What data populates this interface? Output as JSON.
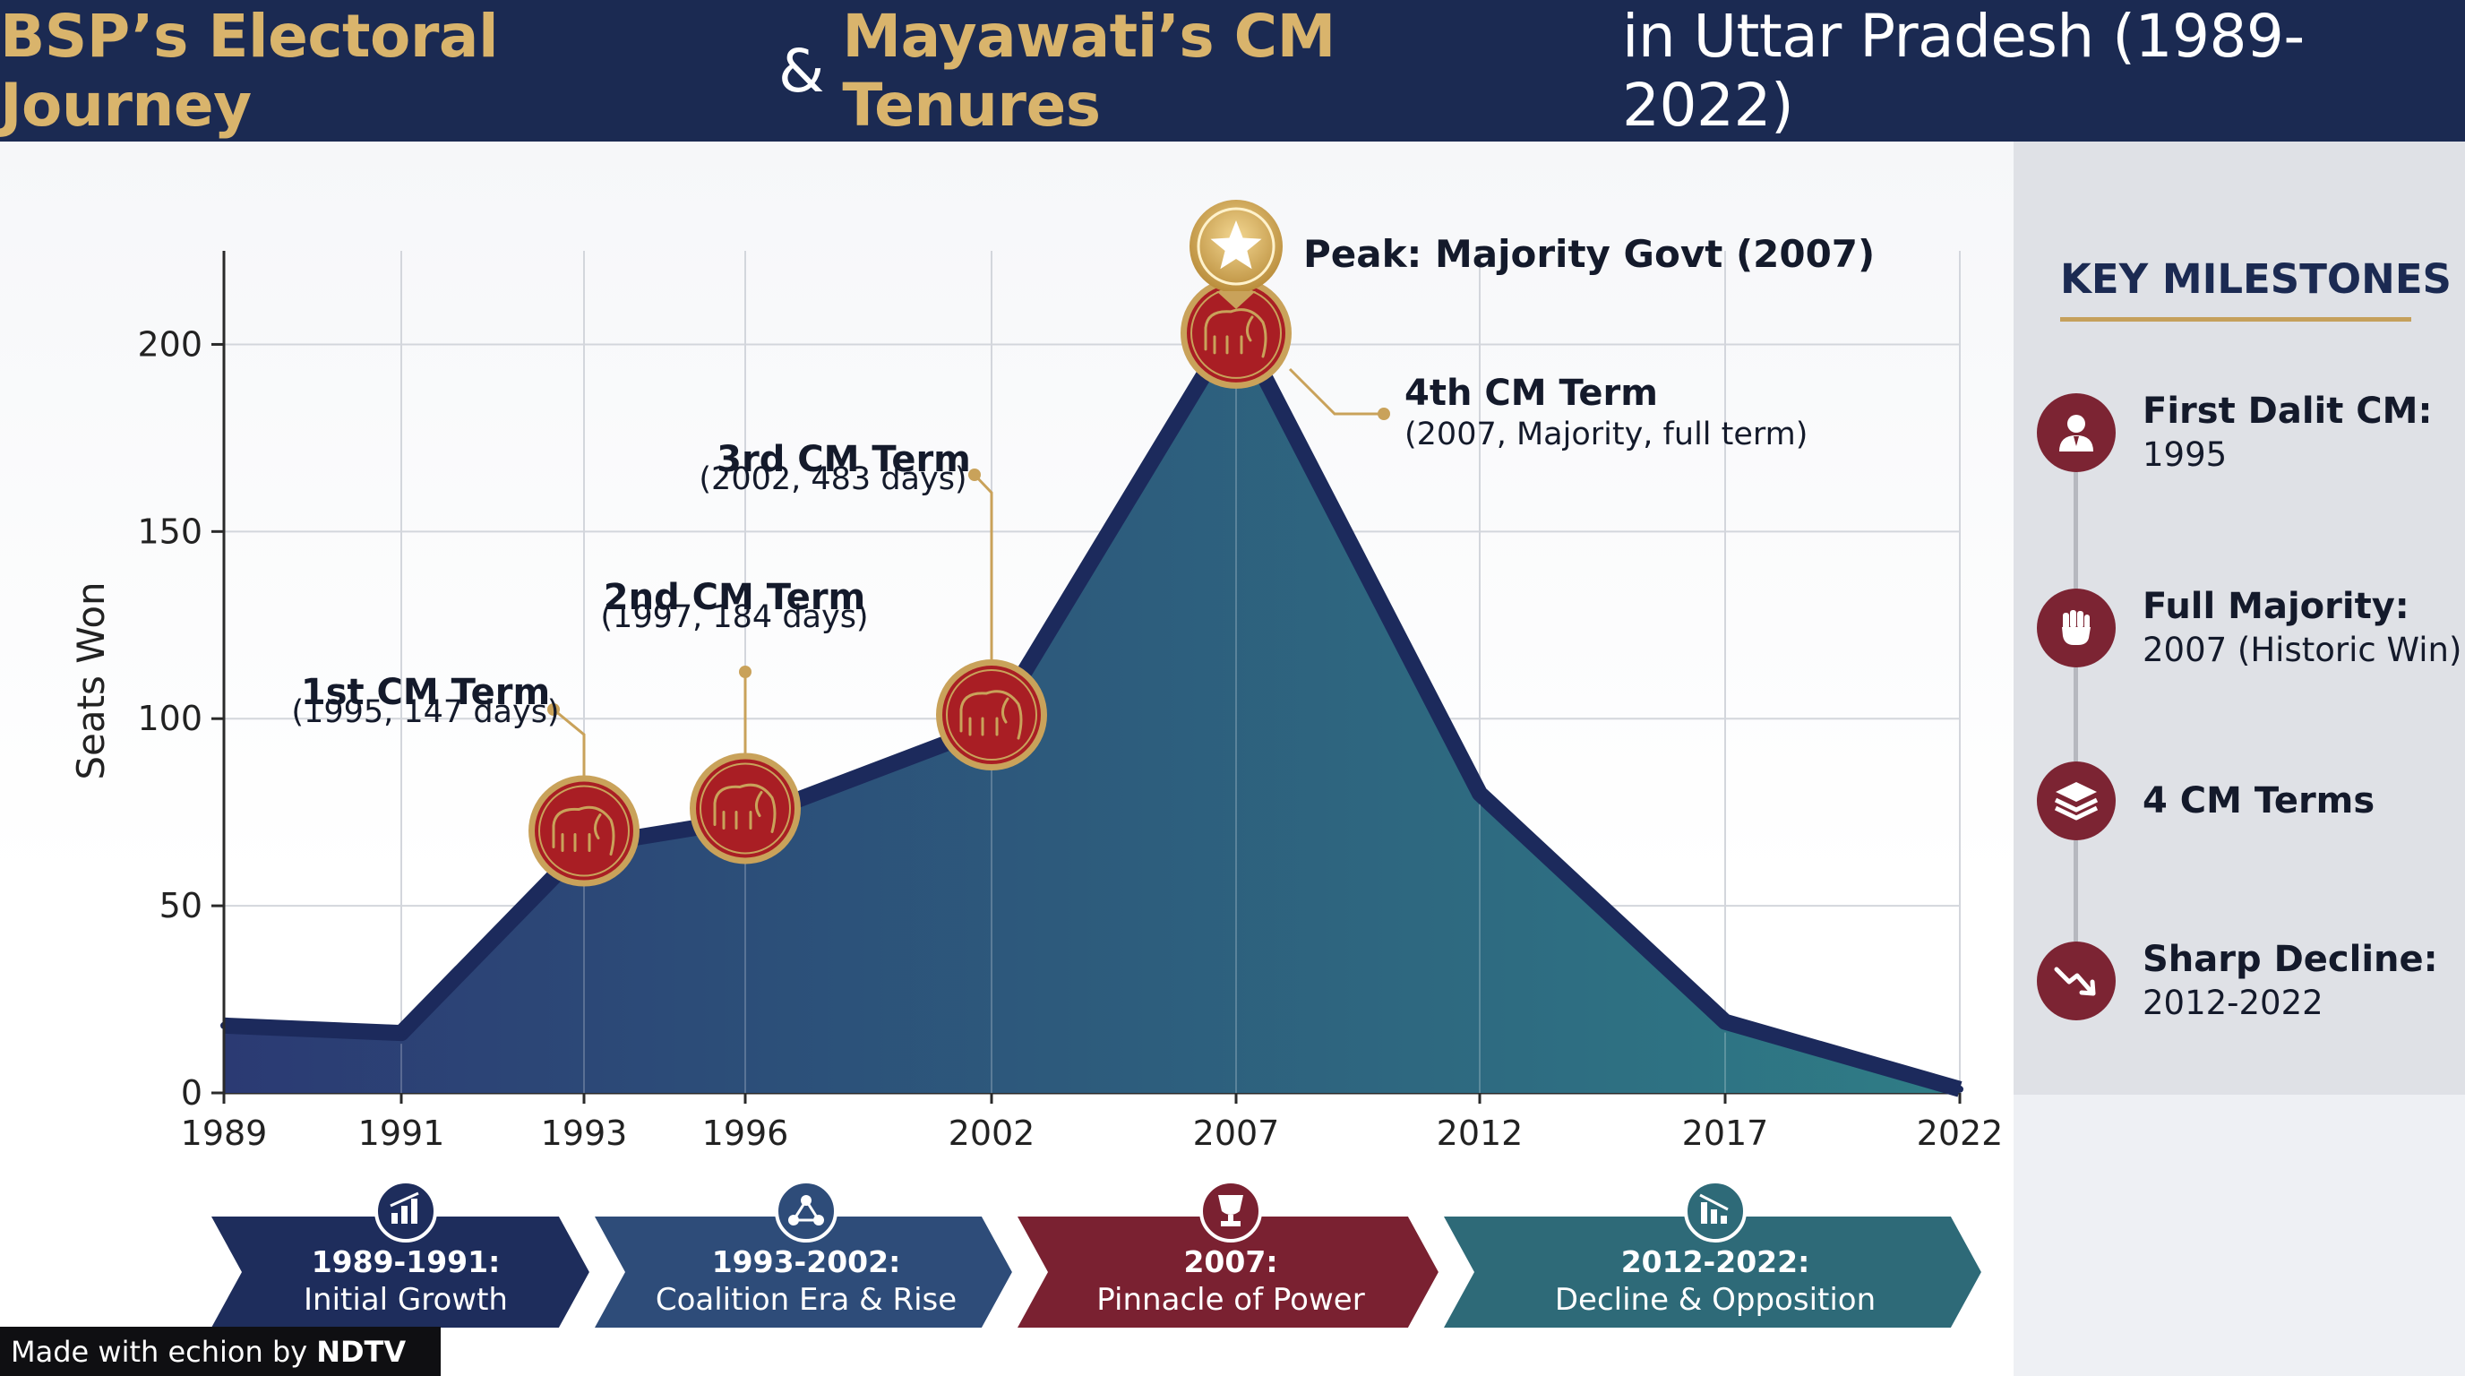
{
  "header": {
    "title_part1": "BSP’s Electoral Journey",
    "title_part2": "&",
    "title_part3": "Mayawati’s CM Tenures",
    "title_part4": "in Uttar Pradesh (1989-2022)"
  },
  "chart_data": {
    "type": "area",
    "ylabel": "Seats Won",
    "xlabel": "",
    "ylim": [
      0,
      225
    ],
    "yticks": [
      0,
      50,
      100,
      150,
      200
    ],
    "x": [
      "1989",
      "1991",
      "1993",
      "1996",
      "2002",
      "2007",
      "2012",
      "2017",
      "2022"
    ],
    "values": [
      18,
      16,
      66,
      73,
      98,
      206,
      80,
      19,
      1
    ],
    "grid": true,
    "peak_label": "Peak: Majority Govt (2007)",
    "cm_terms": [
      {
        "index": 2,
        "y": 70,
        "title": "1st CM Term",
        "detail": "(1995, 147 days)"
      },
      {
        "index": 3,
        "y": 76,
        "title": "2nd CM Term",
        "detail": "(1997, 184 days)"
      },
      {
        "index": 4,
        "y": 101,
        "title": "3rd CM Term",
        "detail": "(2002, 483 days)"
      },
      {
        "index": 5,
        "y": 203,
        "title": "4th CM Term",
        "detail": "(2007, Majority, full term)"
      }
    ],
    "colors": {
      "area_start": "#2b3a73",
      "area_end": "#2f7d86",
      "edge": "#1c2a5c",
      "marker": "#a91e24",
      "gold": "#c9a25a"
    }
  },
  "phases": [
    {
      "range": "1989-1991:",
      "label": "Initial Growth",
      "icon": "growth-chart-icon",
      "color": "#1e2d5c"
    },
    {
      "range": "1993-2002:",
      "label": "Coalition Era & Rise",
      "icon": "network-icon",
      "color": "#2e4c79"
    },
    {
      "range": "2007:",
      "label": "Pinnacle of Power",
      "icon": "trophy-icon",
      "color": "#7a2131"
    },
    {
      "range": "2012-2022:",
      "label": "Decline & Opposition",
      "icon": "decline-chart-icon",
      "color": "#2e6a78"
    }
  ],
  "milestones": {
    "title": "KEY MILESTONES",
    "items": [
      {
        "title": "First Dalit CM:",
        "sub": "1995",
        "icon": "person-icon"
      },
      {
        "title": "Full Majority:",
        "sub": "2007 (Historic Win)",
        "icon": "fist-icon"
      },
      {
        "title": "4 CM Terms",
        "sub": "",
        "icon": "layers-icon"
      },
      {
        "title": "Sharp Decline:",
        "sub": "2012-2022",
        "icon": "trend-down-icon"
      }
    ]
  },
  "footer": {
    "made_with": "Made with echion by",
    "brand": "NDTV"
  }
}
